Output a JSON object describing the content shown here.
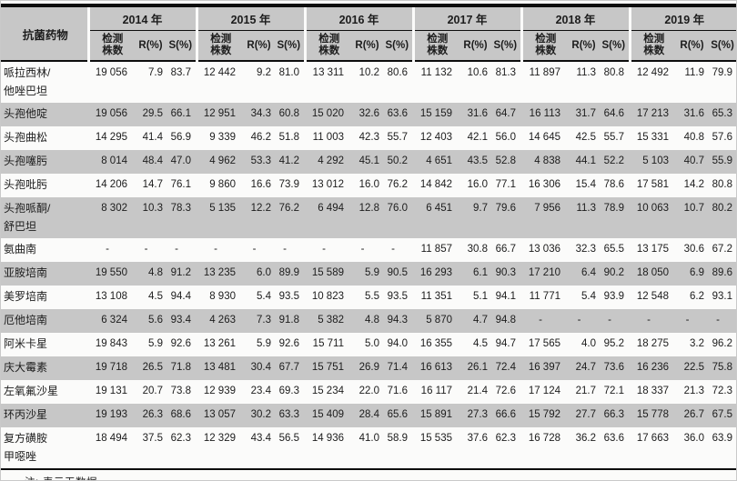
{
  "colors": {
    "stripe_bg": "#c7c7c7",
    "rule_color": "#0d0d0d",
    "text_color": "#1c1c1c",
    "page_bg": "#fbfbfa"
  },
  "table": {
    "corner_label": "抗菌药物",
    "years": [
      "2014 年",
      "2015 年",
      "2016 年",
      "2017 年",
      "2018 年",
      "2019 年"
    ],
    "subheaders": {
      "count_lines": [
        "检测",
        "株数"
      ],
      "r": "R(%)",
      "s": "S(%)"
    },
    "rows": [
      {
        "drug_lines": [
          "哌拉西林/",
          "他唑巴坦"
        ],
        "cells": [
          [
            "19 056",
            "7.9",
            "83.7"
          ],
          [
            "12 442",
            "9.2",
            "81.0"
          ],
          [
            "13 311",
            "10.2",
            "80.6"
          ],
          [
            "11 132",
            "10.6",
            "81.3"
          ],
          [
            "11 897",
            "11.3",
            "80.8"
          ],
          [
            "12 492",
            "11.9",
            "79.9"
          ]
        ]
      },
      {
        "drug_lines": [
          "头孢他啶"
        ],
        "cells": [
          [
            "19 056",
            "29.5",
            "66.1"
          ],
          [
            "12 951",
            "34.3",
            "60.8"
          ],
          [
            "15 020",
            "32.6",
            "63.6"
          ],
          [
            "15 159",
            "31.6",
            "64.7"
          ],
          [
            "16 113",
            "31.7",
            "64.6"
          ],
          [
            "17 213",
            "31.6",
            "65.3"
          ]
        ]
      },
      {
        "drug_lines": [
          "头孢曲松"
        ],
        "cells": [
          [
            "14 295",
            "41.4",
            "56.9"
          ],
          [
            "9 339",
            "46.2",
            "51.8"
          ],
          [
            "11 003",
            "42.3",
            "55.7"
          ],
          [
            "12 403",
            "42.1",
            "56.0"
          ],
          [
            "14 645",
            "42.5",
            "55.7"
          ],
          [
            "15 331",
            "40.8",
            "57.6"
          ]
        ]
      },
      {
        "drug_lines": [
          "头孢噻肟"
        ],
        "cells": [
          [
            "8 014",
            "48.4",
            "47.0"
          ],
          [
            "4 962",
            "53.3",
            "41.2"
          ],
          [
            "4 292",
            "45.1",
            "50.2"
          ],
          [
            "4 651",
            "43.5",
            "52.8"
          ],
          [
            "4 838",
            "44.1",
            "52.2"
          ],
          [
            "5 103",
            "40.7",
            "55.9"
          ]
        ]
      },
      {
        "drug_lines": [
          "头孢吡肟"
        ],
        "cells": [
          [
            "14 206",
            "14.7",
            "76.1"
          ],
          [
            "9 860",
            "16.6",
            "73.9"
          ],
          [
            "13 012",
            "16.0",
            "76.2"
          ],
          [
            "14 842",
            "16.0",
            "77.1"
          ],
          [
            "16 306",
            "15.4",
            "78.6"
          ],
          [
            "17 581",
            "14.2",
            "80.8"
          ]
        ]
      },
      {
        "drug_lines": [
          "头孢哌酮/",
          "舒巴坦"
        ],
        "cells": [
          [
            "8 302",
            "10.3",
            "78.3"
          ],
          [
            "5 135",
            "12.2",
            "76.2"
          ],
          [
            "6 494",
            "12.8",
            "76.0"
          ],
          [
            "6 451",
            "9.7",
            "79.6"
          ],
          [
            "7 956",
            "11.3",
            "78.9"
          ],
          [
            "10 063",
            "10.7",
            "80.2"
          ]
        ]
      },
      {
        "drug_lines": [
          "氨曲南"
        ],
        "cells": [
          [
            "-",
            "-",
            "-"
          ],
          [
            "-",
            "-",
            "-"
          ],
          [
            "-",
            "-",
            "-"
          ],
          [
            "11 857",
            "30.8",
            "66.7"
          ],
          [
            "13 036",
            "32.3",
            "65.5"
          ],
          [
            "13 175",
            "30.6",
            "67.2"
          ]
        ]
      },
      {
        "drug_lines": [
          "亚胺培南"
        ],
        "cells": [
          [
            "19 550",
            "4.8",
            "91.2"
          ],
          [
            "13 235",
            "6.0",
            "89.9"
          ],
          [
            "15 589",
            "5.9",
            "90.5"
          ],
          [
            "16 293",
            "6.1",
            "90.3"
          ],
          [
            "17 210",
            "6.4",
            "90.2"
          ],
          [
            "18 050",
            "6.9",
            "89.6"
          ]
        ]
      },
      {
        "drug_lines": [
          "美罗培南"
        ],
        "cells": [
          [
            "13 108",
            "4.5",
            "94.4"
          ],
          [
            "8 930",
            "5.4",
            "93.5"
          ],
          [
            "10 823",
            "5.5",
            "93.5"
          ],
          [
            "11 351",
            "5.1",
            "94.1"
          ],
          [
            "11 771",
            "5.4",
            "93.9"
          ],
          [
            "12 548",
            "6.2",
            "93.1"
          ]
        ]
      },
      {
        "drug_lines": [
          "厄他培南"
        ],
        "cells": [
          [
            "6 324",
            "5.6",
            "93.4"
          ],
          [
            "4 263",
            "7.3",
            "91.8"
          ],
          [
            "5 382",
            "4.8",
            "94.3"
          ],
          [
            "5 870",
            "4.7",
            "94.8"
          ],
          [
            "-",
            "-",
            "-"
          ],
          [
            "-",
            "-",
            "-"
          ]
        ]
      },
      {
        "drug_lines": [
          "阿米卡星"
        ],
        "cells": [
          [
            "19 843",
            "5.9",
            "92.6"
          ],
          [
            "13 261",
            "5.9",
            "92.6"
          ],
          [
            "15 711",
            "5.0",
            "94.0"
          ],
          [
            "16 355",
            "4.5",
            "94.7"
          ],
          [
            "17 565",
            "4.0",
            "95.2"
          ],
          [
            "18 275",
            "3.2",
            "96.2"
          ]
        ]
      },
      {
        "drug_lines": [
          "庆大霉素"
        ],
        "cells": [
          [
            "19 718",
            "26.5",
            "71.8"
          ],
          [
            "13 481",
            "30.4",
            "67.7"
          ],
          [
            "15 751",
            "26.9",
            "71.4"
          ],
          [
            "16 613",
            "26.1",
            "72.4"
          ],
          [
            "16 397",
            "24.7",
            "73.6"
          ],
          [
            "16 236",
            "22.5",
            "75.8"
          ]
        ]
      },
      {
        "drug_lines": [
          "左氧氟沙星"
        ],
        "cells": [
          [
            "19 131",
            "20.7",
            "73.8"
          ],
          [
            "12 939",
            "23.4",
            "69.3"
          ],
          [
            "15 234",
            "22.0",
            "71.6"
          ],
          [
            "16 117",
            "21.4",
            "72.6"
          ],
          [
            "17 124",
            "21.7",
            "72.1"
          ],
          [
            "18 337",
            "21.3",
            "72.3"
          ]
        ]
      },
      {
        "drug_lines": [
          "环丙沙星"
        ],
        "cells": [
          [
            "19 193",
            "26.3",
            "68.6"
          ],
          [
            "13 057",
            "30.2",
            "63.3"
          ],
          [
            "15 409",
            "28.4",
            "65.6"
          ],
          [
            "15 891",
            "27.3",
            "66.6"
          ],
          [
            "15 792",
            "27.7",
            "66.3"
          ],
          [
            "15 778",
            "26.7",
            "67.5"
          ]
        ]
      },
      {
        "drug_lines": [
          "复方磺胺",
          "甲噁唑"
        ],
        "cells": [
          [
            "18 494",
            "37.5",
            "62.3"
          ],
          [
            "12 329",
            "43.4",
            "56.5"
          ],
          [
            "14 936",
            "41.0",
            "58.9"
          ],
          [
            "15 535",
            "37.6",
            "62.3"
          ],
          [
            "16 728",
            "36.2",
            "63.6"
          ],
          [
            "17 663",
            "36.0",
            "63.9"
          ]
        ]
      }
    ],
    "note": "注:-表示无数据。"
  }
}
